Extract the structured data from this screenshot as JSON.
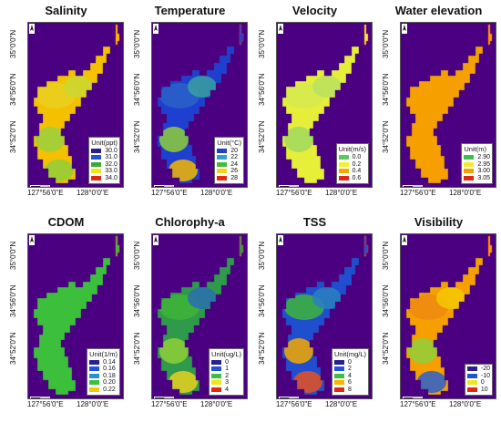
{
  "axes": {
    "y_top": "35°0'0\"N",
    "y_mid": "34°56'0\"N",
    "y_bot": "34°52'0\"N",
    "x_left": "127°56'0\"E",
    "x_right": "128°0'0\"E"
  },
  "water_color": "#4b0082",
  "panels": [
    {
      "title": "Salinity",
      "unit": "Unit(ppt)",
      "fill_colors": [
        "#f5c000",
        "#e8d020",
        "#c8d830",
        "#9ad040",
        "#8fcf3a"
      ],
      "legend": [
        {
          "label": "30.0",
          "color": "#2a1f8f"
        },
        {
          "label": "31.0",
          "color": "#1f55d4"
        },
        {
          "label": "32.0",
          "color": "#3aa83a"
        },
        {
          "label": "33.0",
          "color": "#f2e61a"
        },
        {
          "label": "34.0",
          "color": "#e02a10"
        }
      ]
    },
    {
      "title": "Temperature",
      "unit": "Unit(°C)",
      "fill_colors": [
        "#1f3fd0",
        "#2a62c8",
        "#3aa0a0",
        "#8fcf3a",
        "#f5b800"
      ],
      "legend": [
        {
          "label": "20",
          "color": "#1f3fd0"
        },
        {
          "label": "22",
          "color": "#2fa0d0"
        },
        {
          "label": "24",
          "color": "#49b83a"
        },
        {
          "label": "26",
          "color": "#f2d21a"
        },
        {
          "label": "28",
          "color": "#e02a10"
        }
      ]
    },
    {
      "title": "Velocity",
      "unit": "Unit(m/s)",
      "fill_colors": [
        "#e6ee3a",
        "#d6ea50",
        "#b9e060",
        "#a0d860",
        "#e6ee3a"
      ],
      "legend": [
        {
          "label": "0.0",
          "color": "#5ac85a"
        },
        {
          "label": "0.2",
          "color": "#f2f02a"
        },
        {
          "label": "0.4",
          "color": "#f5a800"
        },
        {
          "label": "0.6",
          "color": "#e02a10"
        }
      ]
    },
    {
      "title": "Water elevation",
      "unit": "Unit(m)",
      "fill_colors": [
        "#f5a000",
        "#f5a000",
        "#f5a000",
        "#f5a000",
        "#f5a000"
      ],
      "legend": [
        {
          "label": "2.90",
          "color": "#3cc04a"
        },
        {
          "label": "2.95",
          "color": "#f2ea30"
        },
        {
          "label": "3.00",
          "color": "#f5a000"
        },
        {
          "label": "3.05",
          "color": "#e02a10"
        }
      ]
    },
    {
      "title": "CDOM",
      "unit": "Unit(1/m)",
      "fill_colors": [
        "#3cbf3c",
        "#3cbf3c",
        "#3cbf3c",
        "#3cbf3c",
        "#3cbf3c"
      ],
      "legend": [
        {
          "label": "0.14",
          "color": "#2a1f8f"
        },
        {
          "label": "0.16",
          "color": "#1f55d4"
        },
        {
          "label": "0.18",
          "color": "#2a8fd0"
        },
        {
          "label": "0.20",
          "color": "#3cbf3c"
        },
        {
          "label": "0.22",
          "color": "#f5c800"
        }
      ]
    },
    {
      "title": "Chlorophy-a",
      "unit": "Unit(ug/L)",
      "fill_colors": [
        "#2f9a4a",
        "#3fb43a",
        "#2a6fb0",
        "#8fcf3a",
        "#e8d020"
      ],
      "legend": [
        {
          "label": "0",
          "color": "#2a1f8f"
        },
        {
          "label": "1",
          "color": "#1f55d4"
        },
        {
          "label": "2",
          "color": "#3cbf3c"
        },
        {
          "label": "3",
          "color": "#f2e61a"
        },
        {
          "label": "4",
          "color": "#e02a10"
        }
      ]
    },
    {
      "title": "TSS",
      "unit": "Unit(mg/L)",
      "fill_colors": [
        "#1f4fd0",
        "#3fb43a",
        "#2a7fc0",
        "#f5a800",
        "#e85020"
      ],
      "legend": [
        {
          "label": "0",
          "color": "#2a1f8f"
        },
        {
          "label": "2",
          "color": "#1f55d4"
        },
        {
          "label": "4",
          "color": "#3cbf3c"
        },
        {
          "label": "6",
          "color": "#f5b800"
        },
        {
          "label": "8",
          "color": "#e02a10"
        }
      ]
    },
    {
      "title": "Visibility",
      "unit": "",
      "fill_colors": [
        "#f5a000",
        "#f08a10",
        "#f5c800",
        "#8fcf3a",
        "#2a5fd0"
      ],
      "legend": [
        {
          "label": "-20",
          "color": "#2a1f8f"
        },
        {
          "label": "-10",
          "color": "#1f55d4"
        },
        {
          "label": "0",
          "color": "#f2e61a"
        },
        {
          "label": "10",
          "color": "#e02a10"
        }
      ]
    }
  ]
}
